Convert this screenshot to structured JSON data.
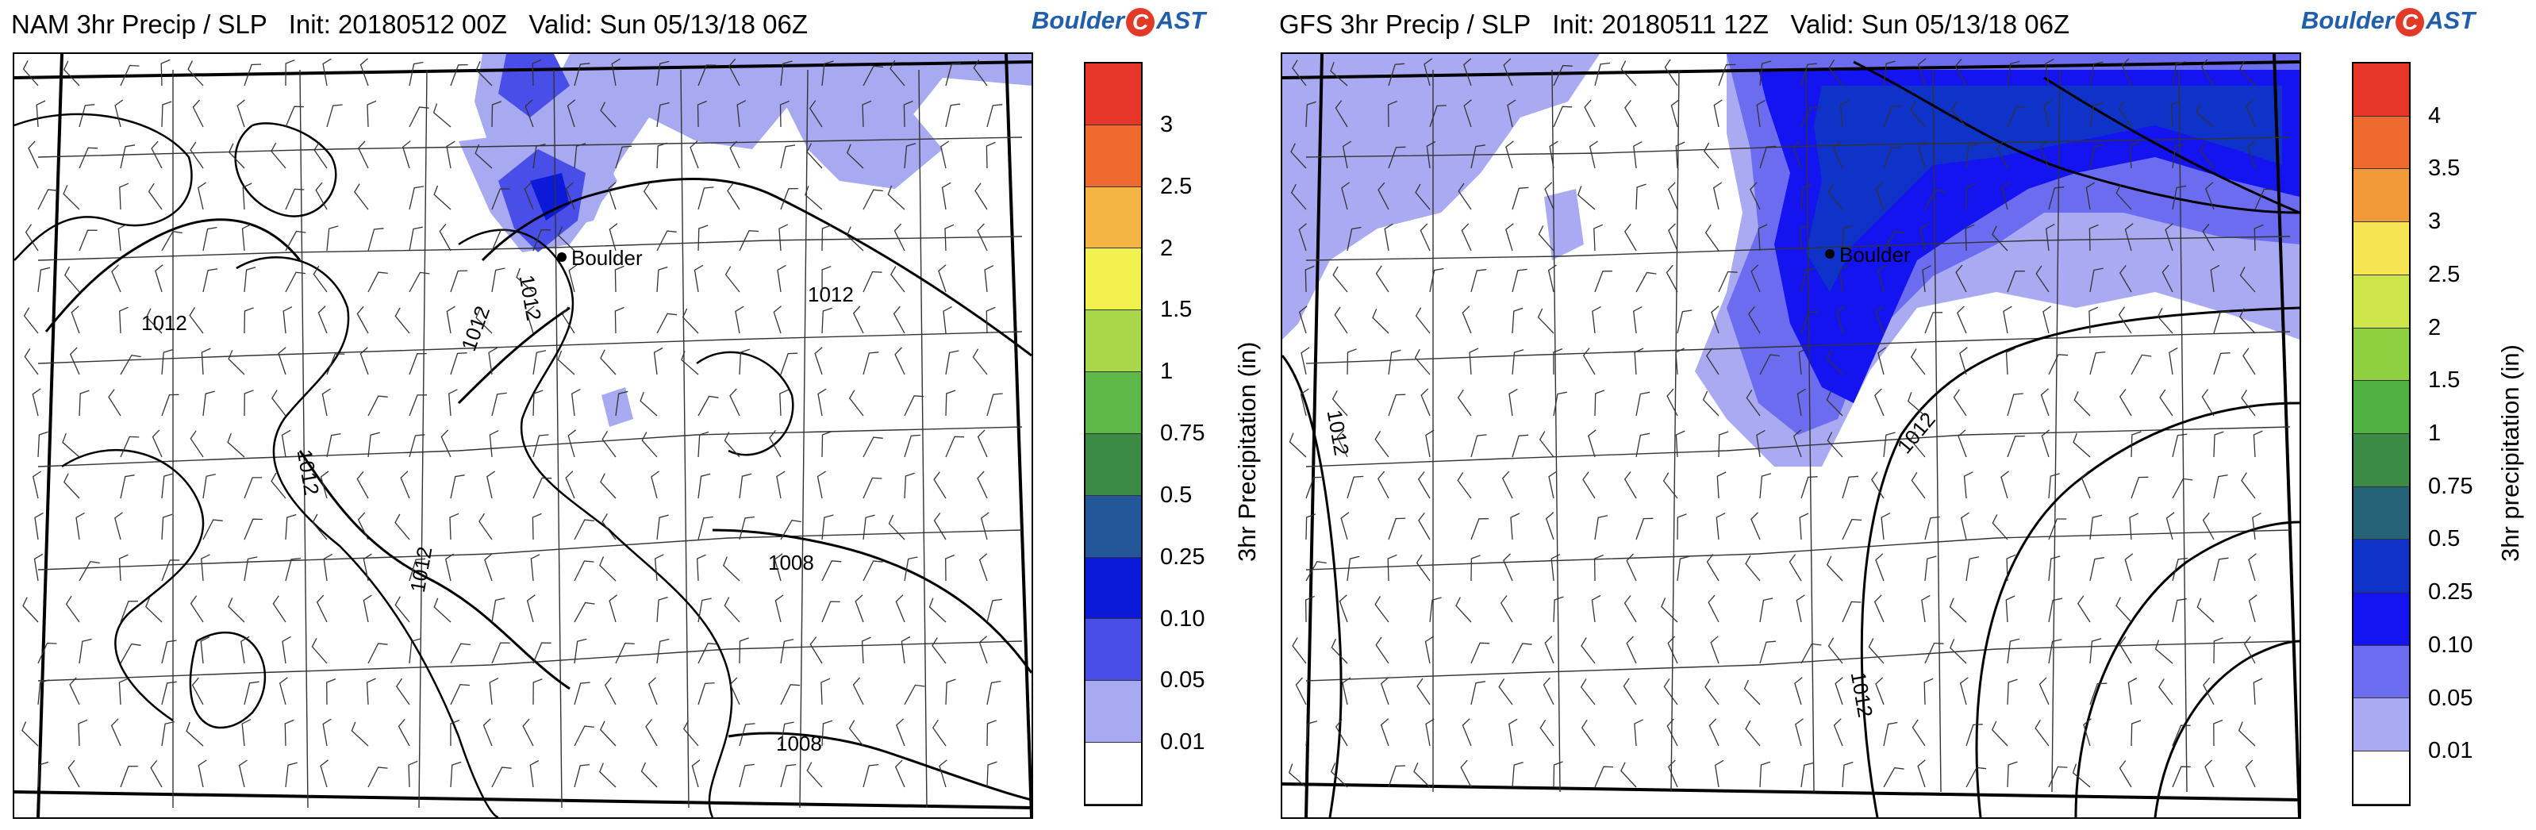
{
  "left": {
    "title": "NAM 3hr Precip / SLP   Init: 20180512 00Z   Valid: Sun 05/13/18 06Z",
    "logo": {
      "pre": "Boulder",
      "c": "C",
      "post": "AST"
    },
    "city": "Boulder",
    "isobars": [
      "1012",
      "1012",
      "1012",
      "1012",
      "1012",
      "1012",
      "1008",
      "1008"
    ],
    "colorbar_label": "3hr Precipitation (in)",
    "colorbar_ticks": [
      "3",
      "2.5",
      "2",
      "1.5",
      "1",
      "0.75",
      "0.5",
      "0.25",
      "0.10",
      "0.05",
      "0.01"
    ],
    "colorbar_colors": [
      "#e8352a",
      "#ee6a2f",
      "#f4b544",
      "#f0f04e",
      "#a8d84a",
      "#5db847",
      "#3b8a45",
      "#24579a",
      "#0a1ad8",
      "#4a4ee8",
      "#a7a9f1",
      "#ffffff"
    ]
  },
  "right": {
    "title": "GFS 3hr Precip / SLP   Init: 20180511 12Z   Valid: Sun 05/13/18 06Z",
    "logo": {
      "pre": "Boulder",
      "c": "C",
      "post": "AST"
    },
    "city": "Boulder",
    "isobars": [
      "1012",
      "1012",
      "1012"
    ],
    "colorbar_label": "3hr precipitation (in)",
    "colorbar_ticks": [
      "4",
      "3.5",
      "3",
      "2.5",
      "2",
      "1.5",
      "1",
      "0.75",
      "0.5",
      "0.25",
      "0.10",
      "0.05",
      "0.01"
    ],
    "colorbar_colors": [
      "#e8352a",
      "#ee6a2f",
      "#f29a3a",
      "#f6e452",
      "#cde44a",
      "#8fd041",
      "#51b042",
      "#3b8a45",
      "#246378",
      "#0f33c8",
      "#1414f0",
      "#6c6cf0",
      "#aaaaf2",
      "#ffffff"
    ]
  }
}
